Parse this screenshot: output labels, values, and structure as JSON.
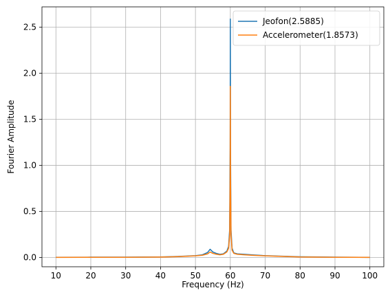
{
  "chart_data": {
    "type": "line",
    "title": "",
    "xlabel": "Frequency (Hz)",
    "ylabel": "Fourier Amplitude",
    "xlim": [
      6,
      104
    ],
    "ylim": [
      -0.1,
      2.72
    ],
    "xticks": [
      10,
      20,
      30,
      40,
      50,
      60,
      70,
      80,
      90,
      100
    ],
    "xtick_labels": [
      "10",
      "20",
      "30",
      "40",
      "50",
      "60",
      "70",
      "80",
      "90",
      "100"
    ],
    "yticks": [
      0.0,
      0.5,
      1.0,
      1.5,
      2.0,
      2.5
    ],
    "ytick_labels": [
      "0.0",
      "0.5",
      "1.0",
      "1.5",
      "2.0",
      "2.5"
    ],
    "grid": true,
    "legend_position": "top-right",
    "series": [
      {
        "name": "Jeofon(2.5885)",
        "color": "#1f77b4",
        "x": [
          10,
          20,
          30,
          40,
          45,
          50,
          52,
          53.5,
          54.2,
          55,
          56,
          57,
          58,
          59,
          59.5,
          59.8,
          59.95,
          60,
          60.05,
          60.2,
          60.5,
          61,
          62,
          64,
          66,
          70,
          80,
          90,
          100
        ],
        "y": [
          0.003,
          0.004,
          0.004,
          0.006,
          0.012,
          0.02,
          0.03,
          0.055,
          0.09,
          0.06,
          0.045,
          0.035,
          0.04,
          0.07,
          0.12,
          0.3,
          1.2,
          2.5885,
          1.2,
          0.3,
          0.1,
          0.05,
          0.04,
          0.035,
          0.03,
          0.02,
          0.008,
          0.004,
          0.002
        ]
      },
      {
        "name": "Accelerometer(1.8573)",
        "color": "#ff7f0e",
        "x": [
          10,
          20,
          30,
          40,
          45,
          50,
          52,
          53.5,
          54.2,
          55,
          56,
          57,
          58,
          59,
          59.5,
          59.8,
          59.95,
          60,
          60.05,
          60.2,
          60.5,
          61,
          62,
          64,
          66,
          70,
          80,
          90,
          100
        ],
        "y": [
          0.002,
          0.003,
          0.003,
          0.005,
          0.01,
          0.018,
          0.025,
          0.04,
          0.06,
          0.045,
          0.035,
          0.03,
          0.035,
          0.06,
          0.1,
          0.25,
          0.9,
          1.8573,
          0.9,
          0.25,
          0.08,
          0.045,
          0.035,
          0.03,
          0.025,
          0.018,
          0.006,
          0.003,
          0.002
        ]
      }
    ]
  }
}
